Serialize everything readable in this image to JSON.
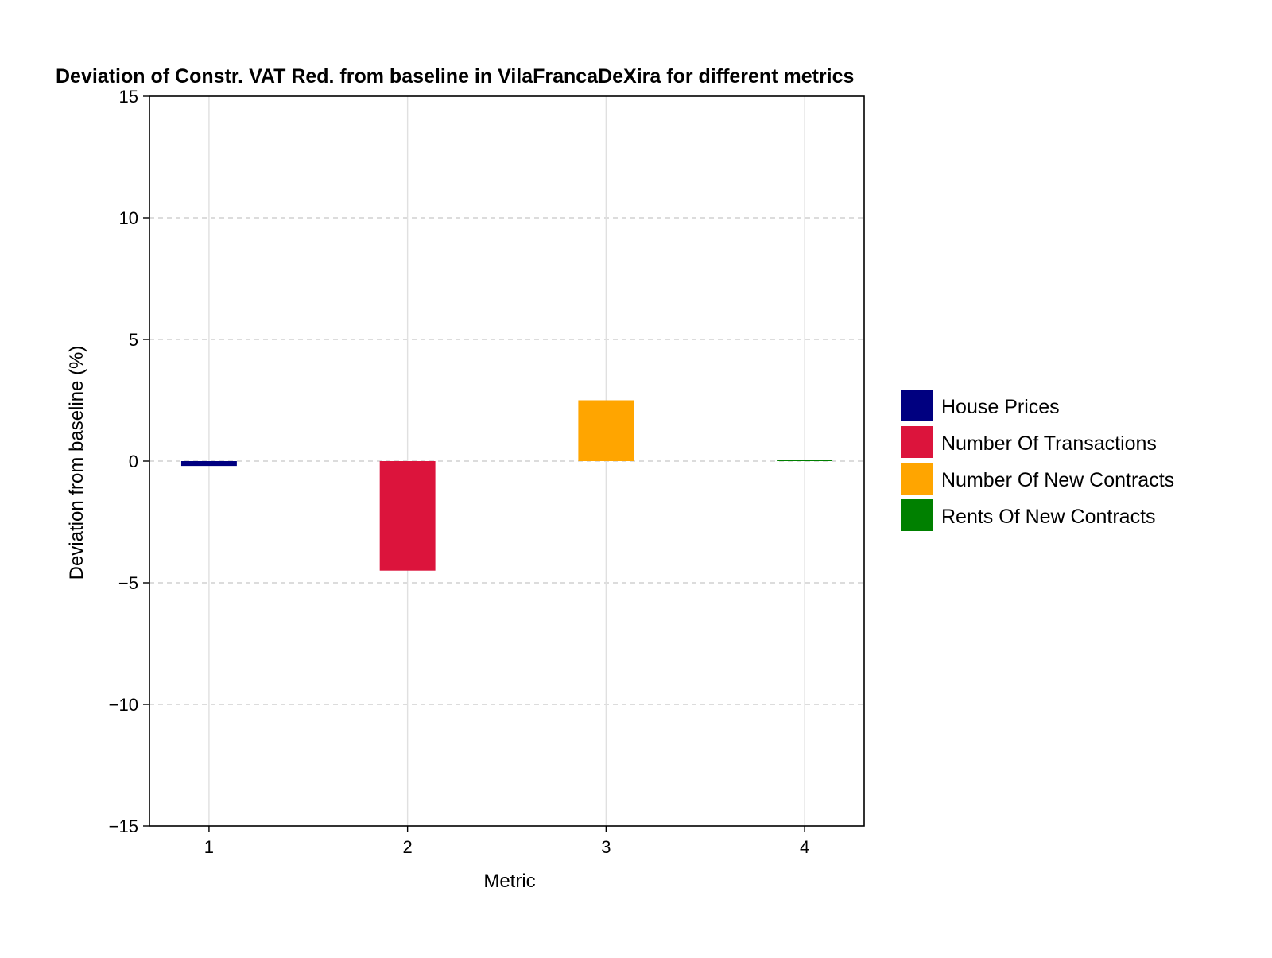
{
  "chart_data": {
    "type": "bar",
    "title": "Deviation of Constr. VAT Red. from baseline in VilaFrancaDeXira for different metrics",
    "xlabel": "Metric",
    "ylabel": "Deviation from baseline (%)",
    "categories": [
      "1",
      "2",
      "3",
      "4"
    ],
    "x_ticks": [
      "1",
      "2",
      "3",
      "4"
    ],
    "y_ticks": [
      "15",
      "10",
      "5",
      "0",
      "−5",
      "−10",
      "−15"
    ],
    "y_tick_values": [
      15,
      10,
      5,
      0,
      -5,
      -10,
      -15
    ],
    "ylim": [
      -15,
      15
    ],
    "xlim": [
      0.7,
      4.3
    ],
    "grid": true,
    "legend_position": "right",
    "series": [
      {
        "name": "House Prices",
        "x": 1,
        "value": -0.2,
        "color": "#000080"
      },
      {
        "name": "Number Of Transactions",
        "x": 2,
        "value": -4.5,
        "color": "#DC143C"
      },
      {
        "name": "Number Of New Contracts",
        "x": 3,
        "value": 2.5,
        "color": "#FFA500"
      },
      {
        "name": "Rents Of New Contracts",
        "x": 4,
        "value": 0.05,
        "color": "#008000"
      }
    ]
  }
}
